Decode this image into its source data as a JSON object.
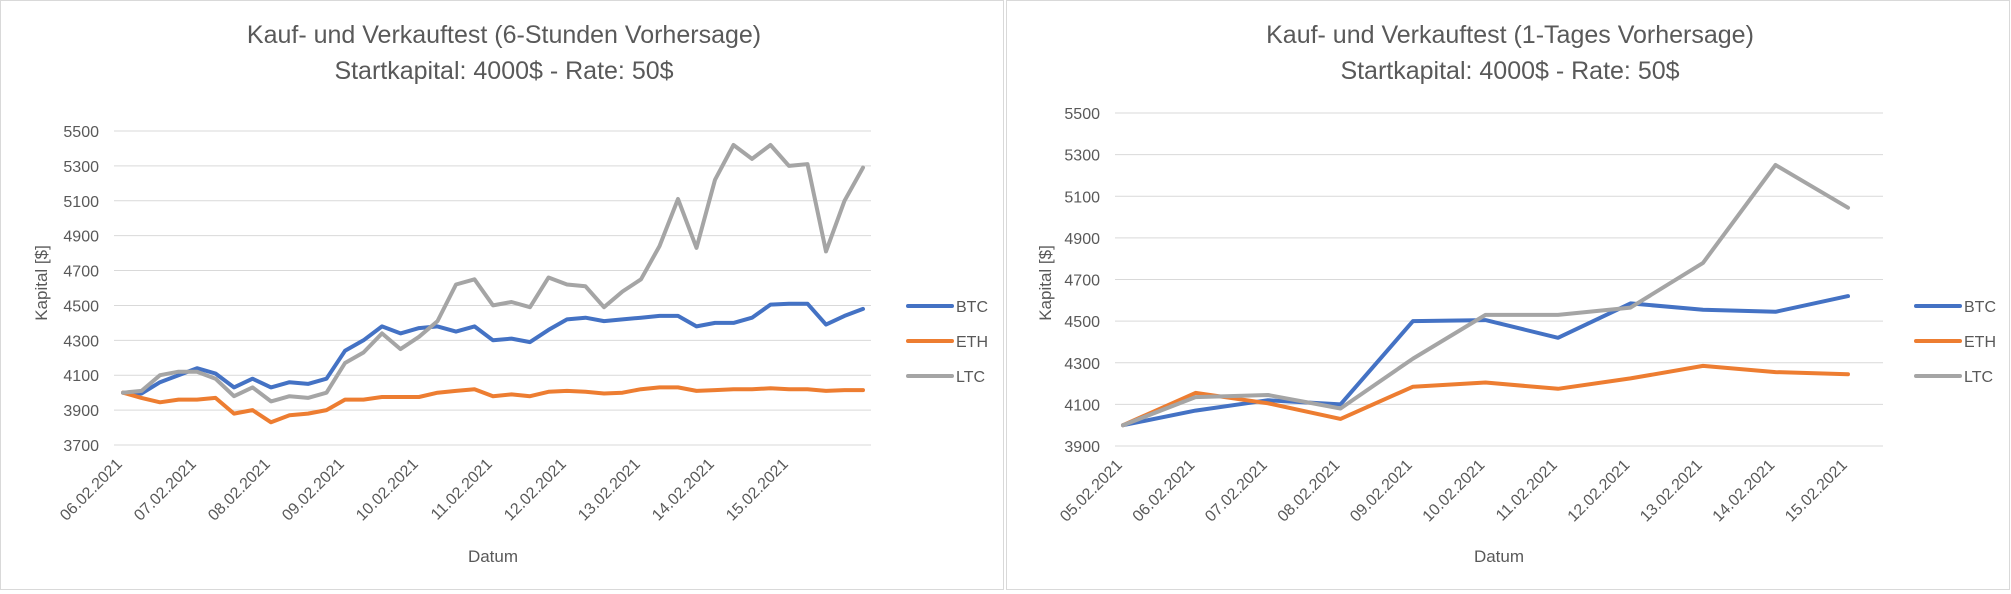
{
  "chart_data": [
    {
      "type": "line",
      "title": "Kauf- und Verkauftest (6-Stunden Vorhersage)",
      "subtitle": "Startkapital: 4000$ - Rate: 50$",
      "xlabel": "Datum",
      "ylabel": "Kapital [$]",
      "ylim": [
        3700,
        5500
      ],
      "yticks": [
        3700,
        3900,
        4100,
        4300,
        4500,
        4700,
        4900,
        5100,
        5300,
        5500
      ],
      "x_tick_labels": [
        "06.02.2021",
        "07.02.2021",
        "08.02.2021",
        "09.02.2021",
        "10.02.2021",
        "11.02.2021",
        "12.02.2021",
        "13.02.2021",
        "14.02.2021",
        "15.02.2021"
      ],
      "points_per_day": 4,
      "grid": true,
      "legend_position": "right",
      "series": [
        {
          "name": "BTC",
          "color": "#4472C4",
          "values": [
            4000,
            3995,
            4060,
            4100,
            4140,
            4110,
            4030,
            4080,
            4030,
            4060,
            4050,
            4080,
            4240,
            4300,
            4380,
            4340,
            4370,
            4380,
            4350,
            4380,
            4300,
            4310,
            4290,
            4360,
            4420,
            4430,
            4410,
            4420,
            4430,
            4440,
            4440,
            4380,
            4400,
            4400,
            4430,
            4505,
            4510,
            4510,
            4390,
            4440,
            4480
          ]
        },
        {
          "name": "ETH",
          "color": "#ED7D31",
          "values": [
            4000,
            3970,
            3945,
            3960,
            3960,
            3970,
            3880,
            3900,
            3830,
            3870,
            3880,
            3900,
            3960,
            3960,
            3975,
            3975,
            3975,
            4000,
            4010,
            4020,
            3980,
            3990,
            3980,
            4005,
            4010,
            4005,
            3995,
            4000,
            4020,
            4030,
            4030,
            4010,
            4015,
            4020,
            4020,
            4025,
            4020,
            4020,
            4010,
            4015,
            4015
          ]
        },
        {
          "name": "LTC",
          "color": "#A5A5A5",
          "values": [
            4000,
            4010,
            4100,
            4120,
            4120,
            4080,
            3980,
            4030,
            3950,
            3980,
            3970,
            4000,
            4170,
            4230,
            4340,
            4250,
            4320,
            4410,
            4620,
            4650,
            4500,
            4520,
            4490,
            4660,
            4620,
            4610,
            4490,
            4580,
            4650,
            4840,
            5110,
            4830,
            5220,
            5420,
            5340,
            5420,
            5300,
            5310,
            4810,
            5100,
            5290
          ]
        }
      ]
    },
    {
      "type": "line",
      "title": "Kauf- und Verkauftest (1-Tages Vorhersage)",
      "subtitle": "Startkapital: 4000$ - Rate: 50$",
      "xlabel": "Datum",
      "ylabel": "Kapital [$]",
      "ylim": [
        3900,
        5500
      ],
      "yticks": [
        3900,
        4100,
        4300,
        4500,
        4700,
        4900,
        5100,
        5300,
        5500
      ],
      "x_tick_labels": [
        "05.02.2021",
        "06.02.2021",
        "07.02.2021",
        "08.02.2021",
        "09.02.2021",
        "10.02.2021",
        "11.02.2021",
        "12.02.2021",
        "13.02.2021",
        "14.02.2021",
        "15.02.2021"
      ],
      "points_per_day": 1,
      "grid": true,
      "legend_position": "right",
      "series": [
        {
          "name": "BTC",
          "color": "#4472C4",
          "values": [
            4000,
            4070,
            4120,
            4100,
            4500,
            4505,
            4420,
            4585,
            4555,
            4545,
            4620
          ]
        },
        {
          "name": "ETH",
          "color": "#ED7D31",
          "values": [
            4000,
            4155,
            4105,
            4030,
            4185,
            4205,
            4175,
            4225,
            4285,
            4255,
            4245
          ]
        },
        {
          "name": "LTC",
          "color": "#A5A5A5",
          "values": [
            4000,
            4135,
            4145,
            4080,
            4320,
            4530,
            4530,
            4565,
            4780,
            5250,
            5045
          ]
        }
      ]
    }
  ]
}
